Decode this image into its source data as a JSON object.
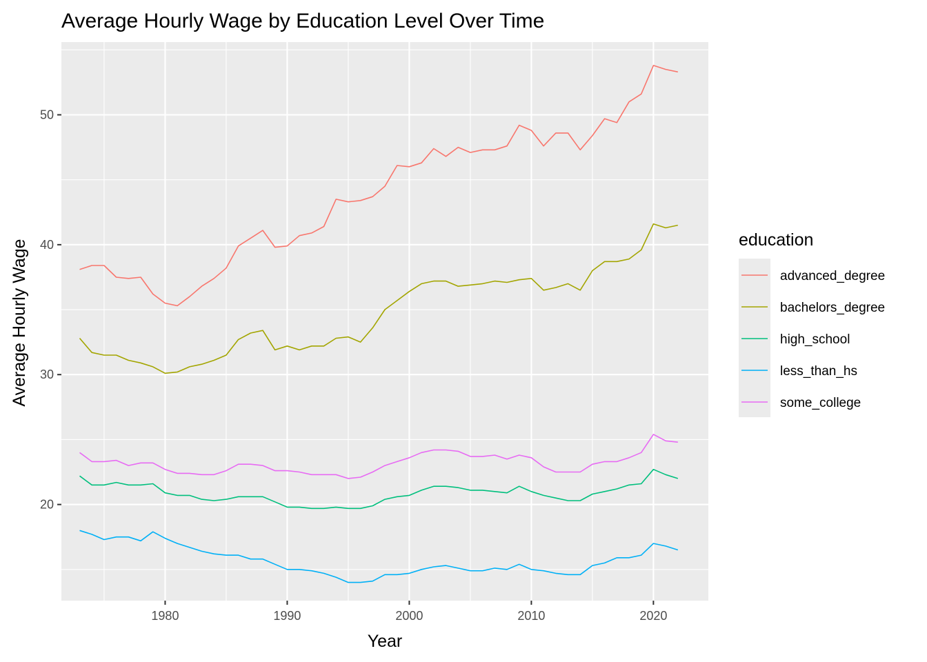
{
  "chart_data": {
    "type": "line",
    "title": "Average Hourly Wage by Education Level Over Time",
    "xlabel": "Year",
    "ylabel": "Average Hourly Wage",
    "xlim": [
      1971.5,
      2024.5
    ],
    "ylim": [
      12.6,
      55.6
    ],
    "x_ticks": [
      1980,
      1990,
      2000,
      2010,
      2020
    ],
    "y_ticks": [
      20,
      30,
      40,
      50
    ],
    "grid": true,
    "legend": {
      "title": "education",
      "position": "right"
    },
    "x": [
      1973,
      1974,
      1975,
      1976,
      1977,
      1978,
      1979,
      1980,
      1981,
      1982,
      1983,
      1984,
      1985,
      1986,
      1987,
      1988,
      1989,
      1990,
      1991,
      1992,
      1993,
      1994,
      1995,
      1996,
      1997,
      1998,
      1999,
      2000,
      2001,
      2002,
      2003,
      2004,
      2005,
      2006,
      2007,
      2008,
      2009,
      2010,
      2011,
      2012,
      2013,
      2014,
      2015,
      2016,
      2017,
      2018,
      2019,
      2020,
      2021,
      2022
    ],
    "series": [
      {
        "name": "advanced_degree",
        "color": "#F8766D",
        "values": [
          38.1,
          38.4,
          38.4,
          37.5,
          37.4,
          37.5,
          36.2,
          35.5,
          35.3,
          36.0,
          36.8,
          37.4,
          38.2,
          39.9,
          40.5,
          41.1,
          39.8,
          39.9,
          40.7,
          40.9,
          41.4,
          43.5,
          43.3,
          43.4,
          43.7,
          44.5,
          46.1,
          46.0,
          46.3,
          47.4,
          46.8,
          47.5,
          47.1,
          47.3,
          47.3,
          47.6,
          49.2,
          48.8,
          47.6,
          48.6,
          48.6,
          47.3,
          48.4,
          49.7,
          49.4,
          51.0,
          51.6,
          53.8,
          53.5,
          53.3
        ]
      },
      {
        "name": "bachelors_degree",
        "color": "#A3A500",
        "values": [
          32.8,
          31.7,
          31.5,
          31.5,
          31.1,
          30.9,
          30.6,
          30.1,
          30.2,
          30.6,
          30.8,
          31.1,
          31.5,
          32.7,
          33.2,
          33.4,
          31.9,
          32.2,
          31.9,
          32.2,
          32.2,
          32.8,
          32.9,
          32.5,
          33.6,
          35.0,
          35.7,
          36.4,
          37.0,
          37.2,
          37.2,
          36.8,
          36.9,
          37.0,
          37.2,
          37.1,
          37.3,
          37.4,
          36.5,
          36.7,
          37.0,
          36.5,
          38.0,
          38.7,
          38.7,
          38.9,
          39.6,
          41.6,
          41.3,
          41.5
        ]
      },
      {
        "name": "high_school",
        "color": "#00BF7D",
        "values": [
          22.2,
          21.5,
          21.5,
          21.7,
          21.5,
          21.5,
          21.6,
          20.9,
          20.7,
          20.7,
          20.4,
          20.3,
          20.4,
          20.6,
          20.6,
          20.6,
          20.2,
          19.8,
          19.8,
          19.7,
          19.7,
          19.8,
          19.7,
          19.7,
          19.9,
          20.4,
          20.6,
          20.7,
          21.1,
          21.4,
          21.4,
          21.3,
          21.1,
          21.1,
          21.0,
          20.9,
          21.4,
          21.0,
          20.7,
          20.5,
          20.3,
          20.3,
          20.8,
          21.0,
          21.2,
          21.5,
          21.6,
          22.7,
          22.3,
          22.0
        ]
      },
      {
        "name": "less_than_hs",
        "color": "#00B0F6",
        "values": [
          18.0,
          17.7,
          17.3,
          17.5,
          17.5,
          17.2,
          17.9,
          17.4,
          17.0,
          16.7,
          16.4,
          16.2,
          16.1,
          16.1,
          15.8,
          15.8,
          15.4,
          15.0,
          15.0,
          14.9,
          14.7,
          14.4,
          14.0,
          14.0,
          14.1,
          14.6,
          14.6,
          14.7,
          15.0,
          15.2,
          15.3,
          15.1,
          14.9,
          14.9,
          15.1,
          15.0,
          15.4,
          15.0,
          14.9,
          14.7,
          14.6,
          14.6,
          15.3,
          15.5,
          15.9,
          15.9,
          16.1,
          17.0,
          16.8,
          16.5
        ]
      },
      {
        "name": "some_college",
        "color": "#E76BF3",
        "values": [
          24.0,
          23.3,
          23.3,
          23.4,
          23.0,
          23.2,
          23.2,
          22.7,
          22.4,
          22.4,
          22.3,
          22.3,
          22.6,
          23.1,
          23.1,
          23.0,
          22.6,
          22.6,
          22.5,
          22.3,
          22.3,
          22.3,
          22.0,
          22.1,
          22.5,
          23.0,
          23.3,
          23.6,
          24.0,
          24.2,
          24.2,
          24.1,
          23.7,
          23.7,
          23.8,
          23.5,
          23.8,
          23.6,
          22.9,
          22.5,
          22.5,
          22.5,
          23.1,
          23.3,
          23.3,
          23.6,
          24.0,
          25.4,
          24.9,
          24.8
        ]
      }
    ]
  }
}
